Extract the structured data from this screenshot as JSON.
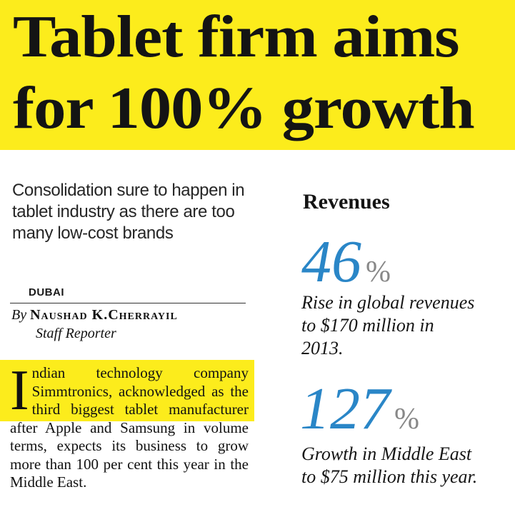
{
  "headline": {
    "line1": "Tablet firm aims",
    "line2": "for 100% growth"
  },
  "subhead": "Consolidation sure to happen in tablet industry as there are too many low-cost brands",
  "dateline": "DUBAI",
  "byline": {
    "by": "By",
    "name": "Naushad K.Cherrayil",
    "role": "Staff Reporter"
  },
  "body": {
    "dropcap": "I",
    "text": "ndian technology company Simmtronics, acknowledged as the third biggest tablet manufacturer after Apple and Samsung in volume terms, expects its business to grow more than 100 per cent this year in the Middle East."
  },
  "sidebar": {
    "title": "Revenues",
    "stats": [
      {
        "value": "46",
        "unit": "%",
        "caption": "Rise in global revenues to $170 million in 2013."
      },
      {
        "value": "127",
        "unit": "%",
        "caption": "Growth in Middle East to $75 million this year."
      }
    ]
  },
  "colors": {
    "highlight": "#fcec1c",
    "stat_blue": "#2a86c7"
  }
}
